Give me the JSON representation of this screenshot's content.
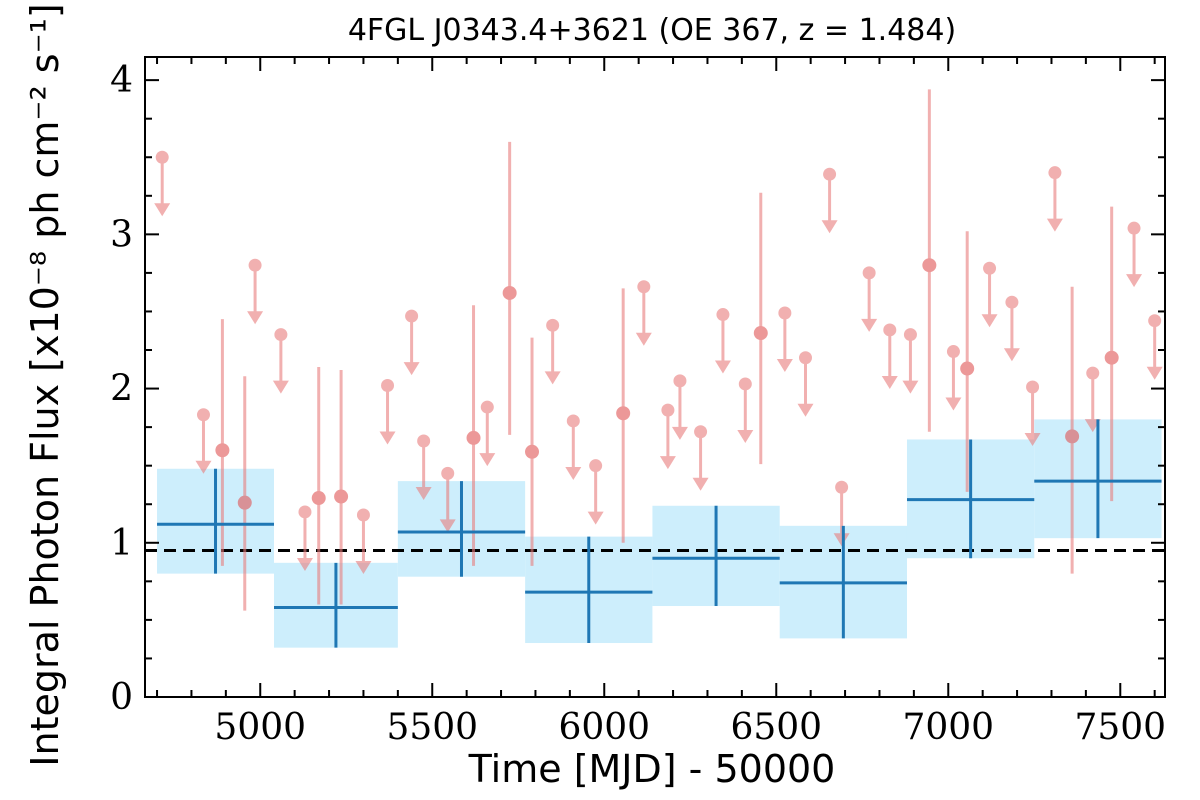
{
  "chart_data": {
    "type": "scatter",
    "title": "4FGL J0343.4+3621 (OE 367, z = 1.484)",
    "xlabel": "Time [MJD] - 50000",
    "ylabel": "Integral Photon Flux [x10⁻⁸ ph cm⁻² s⁻¹]",
    "xlim": [
      4665,
      7630
    ],
    "ylim": [
      0,
      4.15
    ],
    "x_ticks": [
      5000,
      5500,
      6000,
      6500,
      7000,
      7500
    ],
    "x_tick_labels": [
      "5000",
      "5500",
      "6000",
      "6500",
      "7000",
      "7500"
    ],
    "y_ticks": [
      0,
      1,
      2,
      3,
      4
    ],
    "y_tick_labels": [
      "0",
      "1",
      "2",
      "3",
      "4"
    ],
    "grid": false,
    "reference_line": {
      "y": 0.95,
      "style": "dashed"
    },
    "series": [
      {
        "kind": "binned",
        "points": [
          {
            "x_lo": 4700,
            "x_hi": 5040,
            "x": 4870,
            "y": 1.12,
            "y_lo": 0.8,
            "y_hi": 1.48
          },
          {
            "x_lo": 5040,
            "x_hi": 5400,
            "x": 5220,
            "y": 0.58,
            "y_lo": 0.32,
            "y_hi": 0.87
          },
          {
            "x_lo": 5400,
            "x_hi": 5770,
            "x": 5585,
            "y": 1.07,
            "y_lo": 0.78,
            "y_hi": 1.4
          },
          {
            "x_lo": 5770,
            "x_hi": 6140,
            "x": 5955,
            "y": 0.68,
            "y_lo": 0.35,
            "y_hi": 1.04
          },
          {
            "x_lo": 6140,
            "x_hi": 6510,
            "x": 6325,
            "y": 0.9,
            "y_lo": 0.59,
            "y_hi": 1.24
          },
          {
            "x_lo": 6510,
            "x_hi": 6880,
            "x": 6695,
            "y": 0.74,
            "y_lo": 0.38,
            "y_hi": 1.11
          },
          {
            "x_lo": 6880,
            "x_hi": 7250,
            "x": 7065,
            "y": 1.28,
            "y_lo": 0.9,
            "y_hi": 1.67
          },
          {
            "x_lo": 7250,
            "x_hi": 7620,
            "x": 7435,
            "y": 1.4,
            "y_lo": 1.03,
            "y_hi": 1.8
          }
        ],
        "color": "#1f77b4",
        "band_color": "#cdeefc"
      },
      {
        "kind": "detections",
        "points": [
          {
            "x": 4890,
            "y": 1.6,
            "y_lo": 0.85,
            "y_hi": 2.45
          },
          {
            "x": 4955,
            "y": 1.26,
            "y_lo": 0.56,
            "y_hi": 2.08
          },
          {
            "x": 5170,
            "y": 1.29,
            "y_lo": 0.6,
            "y_hi": 2.14
          },
          {
            "x": 5235,
            "y": 1.3,
            "y_lo": 0.6,
            "y_hi": 2.12
          },
          {
            "x": 5620,
            "y": 1.68,
            "y_lo": 0.85,
            "y_hi": 2.54
          },
          {
            "x": 5725,
            "y": 2.62,
            "y_lo": 1.7,
            "y_hi": 3.6
          },
          {
            "x": 5790,
            "y": 1.59,
            "y_lo": 0.85,
            "y_hi": 2.33
          },
          {
            "x": 6055,
            "y": 1.84,
            "y_lo": 1.0,
            "y_hi": 2.65
          },
          {
            "x": 6455,
            "y": 2.36,
            "y_lo": 1.51,
            "y_hi": 3.27
          },
          {
            "x": 6945,
            "y": 2.8,
            "y_lo": 1.72,
            "y_hi": 3.94
          },
          {
            "x": 7055,
            "y": 2.13,
            "y_lo": 1.33,
            "y_hi": 3.02
          },
          {
            "x": 7360,
            "y": 1.69,
            "y_lo": 0.8,
            "y_hi": 2.66
          },
          {
            "x": 7475,
            "y": 2.2,
            "y_lo": 1.27,
            "y_hi": 3.18
          }
        ],
        "color": "#e87d7d"
      },
      {
        "kind": "upper_limits",
        "points": [
          {
            "x": 4715,
            "y": 3.5
          },
          {
            "x": 4835,
            "y": 1.83
          },
          {
            "x": 4985,
            "y": 2.8
          },
          {
            "x": 5060,
            "y": 2.35
          },
          {
            "x": 5130,
            "y": 1.2
          },
          {
            "x": 5300,
            "y": 1.18
          },
          {
            "x": 5370,
            "y": 2.02
          },
          {
            "x": 5440,
            "y": 2.47
          },
          {
            "x": 5475,
            "y": 1.66
          },
          {
            "x": 5545,
            "y": 1.45
          },
          {
            "x": 5660,
            "y": 1.88
          },
          {
            "x": 5850,
            "y": 2.41
          },
          {
            "x": 5910,
            "y": 1.79
          },
          {
            "x": 5975,
            "y": 1.5
          },
          {
            "x": 6115,
            "y": 2.66
          },
          {
            "x": 6185,
            "y": 1.86
          },
          {
            "x": 6220,
            "y": 2.05
          },
          {
            "x": 6280,
            "y": 1.72
          },
          {
            "x": 6345,
            "y": 2.48
          },
          {
            "x": 6410,
            "y": 2.03
          },
          {
            "x": 6525,
            "y": 2.49
          },
          {
            "x": 6585,
            "y": 2.2
          },
          {
            "x": 6655,
            "y": 3.39
          },
          {
            "x": 6690,
            "y": 1.36
          },
          {
            "x": 6770,
            "y": 2.75
          },
          {
            "x": 6830,
            "y": 2.38
          },
          {
            "x": 6890,
            "y": 2.35
          },
          {
            "x": 7015,
            "y": 2.24
          },
          {
            "x": 7120,
            "y": 2.78
          },
          {
            "x": 7185,
            "y": 2.56
          },
          {
            "x": 7245,
            "y": 2.01
          },
          {
            "x": 7310,
            "y": 3.4
          },
          {
            "x": 7420,
            "y": 2.1
          },
          {
            "x": 7540,
            "y": 3.04
          },
          {
            "x": 7600,
            "y": 2.44
          }
        ],
        "color": "#e87d7d"
      }
    ]
  }
}
